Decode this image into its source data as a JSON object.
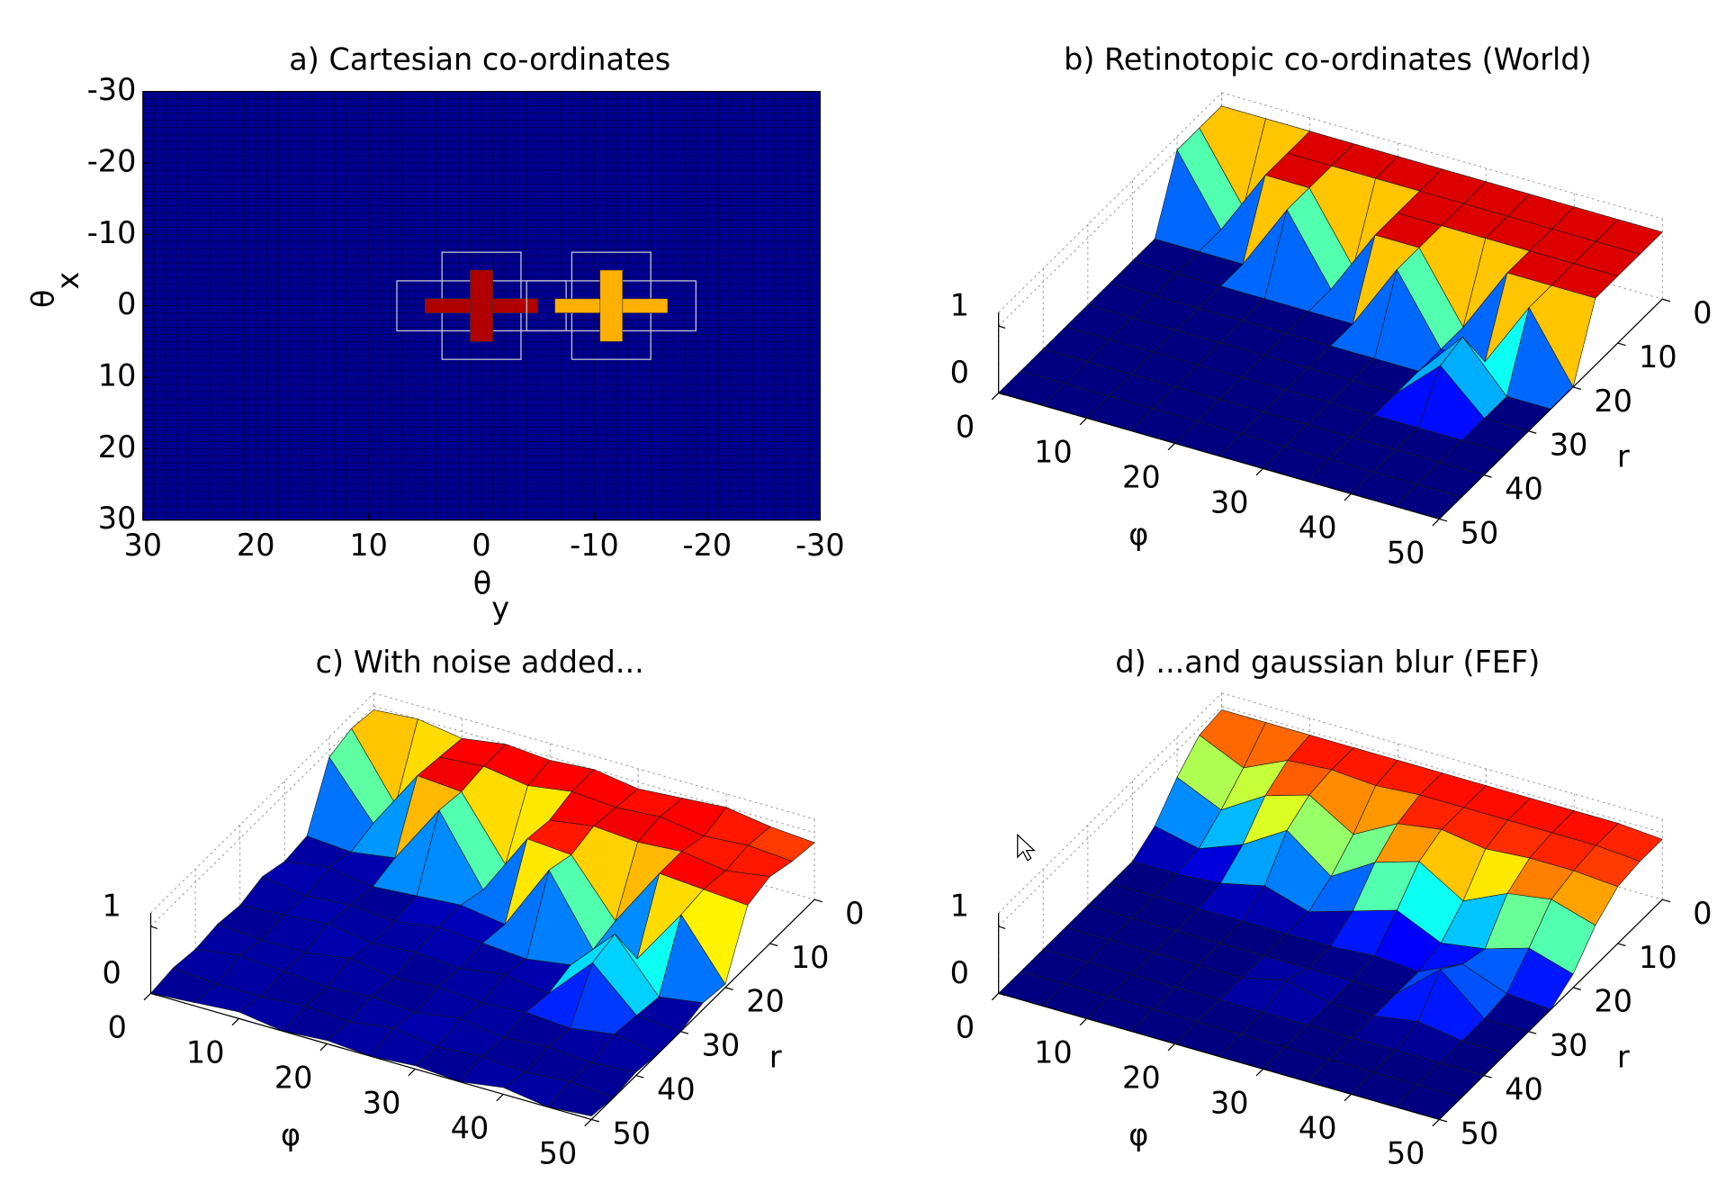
{
  "chart_data": [
    {
      "type": "heatmap",
      "title": "a) Cartesian co-ordinates",
      "xlabel": "θ",
      "xlabel_sub": "y",
      "ylabel": "θ",
      "ylabel_sub": "x",
      "xlim": [
        30,
        -30
      ],
      "ylim": [
        -30,
        30
      ],
      "xticks": [
        30,
        20,
        10,
        0,
        -10,
        -20,
        -30
      ],
      "yticks": [
        -30,
        -20,
        -10,
        0,
        10,
        20,
        30
      ],
      "background_color": "#00008f",
      "crosses": [
        {
          "x": 0,
          "y": 0,
          "size": 5,
          "color": "#b00000"
        },
        {
          "x": -11.5,
          "y": 0,
          "size": 5,
          "color": "#ffb000"
        }
      ]
    },
    {
      "type": "surface",
      "title": "b) Retinotopic co-ordinates (World)",
      "xlabel": "φ",
      "ylabel": "r",
      "xlim": [
        0,
        50
      ],
      "ylim": [
        0,
        50
      ],
      "zlim": [
        0,
        1.2
      ],
      "clim": [
        0,
        1.1
      ],
      "xticks": [
        0,
        10,
        20,
        30,
        40,
        50
      ],
      "yticks": [
        0,
        10,
        20,
        30,
        40,
        50
      ],
      "zticks": [
        0,
        1
      ],
      "colormap": "jet",
      "x": [
        0,
        5,
        10,
        15,
        20,
        25,
        30,
        35,
        40,
        45,
        50
      ],
      "y": [
        0,
        5,
        10,
        15,
        20,
        25,
        30,
        35,
        40,
        45,
        50
      ],
      "z": [
        [
          1,
          1,
          1,
          1,
          1,
          1,
          1,
          1,
          1,
          1,
          1
        ],
        [
          1,
          0,
          1,
          1,
          1,
          1,
          1,
          1,
          1,
          1,
          1
        ],
        [
          1,
          0,
          1,
          1,
          0,
          1,
          1,
          1,
          1,
          1,
          1
        ],
        [
          0,
          0,
          0,
          1,
          0,
          1,
          1,
          0,
          1,
          1,
          1
        ],
        [
          0,
          0,
          0,
          0,
          0,
          0,
          1,
          0,
          0,
          1,
          0
        ],
        [
          0,
          0,
          0,
          0,
          0,
          0,
          0,
          0,
          0.7,
          0,
          0
        ],
        [
          0,
          0,
          0,
          0,
          0,
          0,
          0,
          0,
          0.6,
          0,
          0
        ],
        [
          0,
          0,
          0,
          0,
          0,
          0,
          0,
          0,
          0,
          0,
          0
        ],
        [
          0,
          0,
          0,
          0,
          0,
          0,
          0,
          0,
          0,
          0,
          0
        ],
        [
          0,
          0,
          0,
          0,
          0,
          0,
          0,
          0,
          0,
          0,
          0
        ],
        [
          0,
          0,
          0,
          0,
          0,
          0,
          0,
          0,
          0,
          0,
          0
        ]
      ]
    },
    {
      "type": "surface",
      "title": "c) With noise added...",
      "xlabel": "φ",
      "ylabel": "r",
      "xlim": [
        0,
        50
      ],
      "ylim": [
        0,
        50
      ],
      "zlim": [
        0,
        1.2
      ],
      "clim": [
        0,
        1.1
      ],
      "xticks": [
        0,
        10,
        20,
        30,
        40,
        50
      ],
      "yticks": [
        0,
        10,
        20,
        30,
        40,
        50
      ],
      "zticks": [
        0,
        1
      ],
      "colormap": "jet",
      "x": [
        0,
        5,
        10,
        15,
        20,
        25,
        30,
        35,
        40,
        45,
        50
      ],
      "y": [
        0,
        5,
        10,
        15,
        20,
        25,
        30,
        35,
        40,
        45,
        50
      ],
      "z": [
        [
          0.95,
          1,
          0.9,
          1,
          0.95,
          1,
          0.9,
          0.95,
          1,
          0.9,
          0.85
        ],
        [
          1,
          0.05,
          0.95,
          1,
          0.9,
          1,
          0.95,
          1,
          0.9,
          0.95,
          0.9
        ],
        [
          0.9,
          0.1,
          1,
          0.95,
          0.05,
          0.9,
          1,
          0.95,
          1,
          0.9,
          1
        ],
        [
          0.05,
          0,
          0.1,
          1,
          0,
          0.95,
          0.9,
          0.1,
          1,
          0.95,
          0.9
        ],
        [
          0,
          0.1,
          0,
          0.05,
          0.1,
          0,
          1,
          0,
          0.05,
          0.9,
          0.05
        ],
        [
          0.1,
          0,
          0.05,
          0,
          0.1,
          0.05,
          0,
          0.1,
          0.75,
          0,
          0.1
        ],
        [
          0,
          0.05,
          0.1,
          0,
          0.05,
          0,
          0.1,
          0,
          0.65,
          0.05,
          0
        ],
        [
          0.05,
          0,
          0,
          0.1,
          0,
          0.05,
          0,
          0.05,
          0,
          0.1,
          0
        ],
        [
          0,
          0.1,
          0.05,
          0,
          0.05,
          0,
          0.1,
          0,
          0.05,
          0,
          0.05
        ],
        [
          0.05,
          0,
          0,
          0.05,
          0,
          0.1,
          0,
          0.05,
          0,
          0.05,
          0
        ],
        [
          0,
          0.05,
          0.1,
          0,
          0.05,
          0,
          0.05,
          0,
          0.1,
          0,
          0.05
        ]
      ]
    },
    {
      "type": "surface",
      "title": "d) ...and gaussian blur (FEF)",
      "xlabel": "φ",
      "ylabel": "r",
      "xlim": [
        0,
        50
      ],
      "ylim": [
        0,
        50
      ],
      "zlim": [
        0,
        1.2
      ],
      "clim": [
        0,
        1.1
      ],
      "xticks": [
        0,
        10,
        20,
        30,
        40,
        50
      ],
      "yticks": [
        0,
        10,
        20,
        30,
        40,
        50
      ],
      "zticks": [
        0,
        1
      ],
      "colormap": "jet",
      "x": [
        0,
        5,
        10,
        15,
        20,
        25,
        30,
        35,
        40,
        45,
        50
      ],
      "y": [
        0,
        5,
        10,
        15,
        20,
        25,
        30,
        35,
        40,
        45,
        50
      ],
      "z": [
        [
          0.95,
          0.95,
          0.95,
          0.95,
          0.95,
          0.95,
          0.95,
          0.95,
          0.95,
          0.95,
          0.9
        ],
        [
          0.9,
          0.6,
          0.9,
          0.95,
          0.9,
          0.95,
          0.95,
          0.95,
          0.95,
          0.95,
          0.9
        ],
        [
          0.6,
          0.3,
          0.7,
          0.9,
          0.5,
          0.85,
          0.95,
          0.85,
          0.9,
          0.9,
          0.85
        ],
        [
          0.2,
          0.05,
          0.3,
          0.7,
          0.2,
          0.6,
          0.8,
          0.4,
          0.7,
          0.8,
          0.6
        ],
        [
          0,
          0,
          0.05,
          0.2,
          0,
          0.2,
          0.4,
          0.1,
          0.2,
          0.4,
          0.2
        ],
        [
          0,
          0,
          0,
          0,
          0,
          0,
          0.05,
          0,
          0.3,
          0.05,
          0
        ],
        [
          0,
          0,
          0,
          0,
          0,
          0,
          0,
          0,
          0.55,
          0,
          0
        ],
        [
          0,
          0,
          0,
          0,
          0,
          0.15,
          0,
          0,
          0.1,
          0,
          0
        ],
        [
          0,
          0,
          0,
          0,
          0,
          0,
          0,
          0,
          0,
          0,
          0
        ],
        [
          0,
          0,
          0,
          0,
          0,
          0,
          0,
          0,
          0,
          0,
          0
        ],
        [
          0,
          0,
          0,
          0,
          0,
          0,
          0,
          0,
          0,
          0,
          0
        ]
      ]
    }
  ]
}
